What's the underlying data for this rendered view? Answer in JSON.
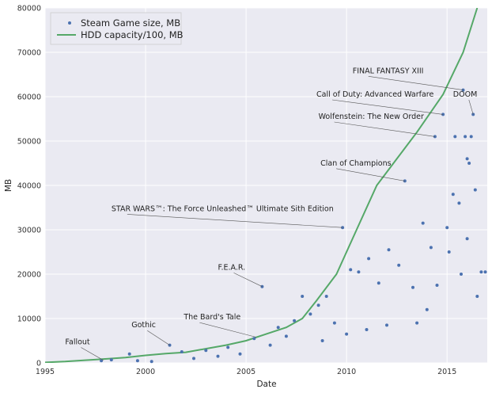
{
  "chart_data": {
    "type": "scatter",
    "xlabel": "Date",
    "ylabel": "MB",
    "xlim": [
      1995,
      2017
    ],
    "ylim": [
      0,
      80000
    ],
    "x_ticks": [
      1995,
      2000,
      2005,
      2010,
      2015
    ],
    "y_ticks": [
      0,
      10000,
      20000,
      30000,
      40000,
      50000,
      60000,
      70000,
      80000
    ],
    "grid": true,
    "legend_position": "top-left",
    "colors": {
      "background": "#eaeaf2",
      "grid": "#ffffff",
      "scatter": "#4c72b0",
      "line": "#55a868"
    },
    "legend": [
      "Steam Game size, MB",
      "HDD capacity/100, MB"
    ],
    "series": [
      {
        "name": "Steam Game size, MB",
        "kind": "scatter",
        "points": [
          [
            1997.8,
            500
          ],
          [
            1998.3,
            700
          ],
          [
            1999.2,
            2000
          ],
          [
            1999.6,
            500
          ],
          [
            2000.3,
            300
          ],
          [
            2001.2,
            4000
          ],
          [
            2001.8,
            2500
          ],
          [
            2002.4,
            1000
          ],
          [
            2003.0,
            2800
          ],
          [
            2003.6,
            1500
          ],
          [
            2004.1,
            3500
          ],
          [
            2004.7,
            2000
          ],
          [
            2005.4,
            5500
          ],
          [
            2005.8,
            17200
          ],
          [
            2006.2,
            4000
          ],
          [
            2006.6,
            8000
          ],
          [
            2007.0,
            6000
          ],
          [
            2007.4,
            9500
          ],
          [
            2007.8,
            15000
          ],
          [
            2008.2,
            11000
          ],
          [
            2008.6,
            13000
          ],
          [
            2009.0,
            15000
          ],
          [
            2009.4,
            9000
          ],
          [
            2009.8,
            30500
          ],
          [
            2010.2,
            21000
          ],
          [
            2010.6,
            20500
          ],
          [
            2011.1,
            23500
          ],
          [
            2011.6,
            18000
          ],
          [
            2012.1,
            25500
          ],
          [
            2012.6,
            22000
          ],
          [
            2012.9,
            41000
          ],
          [
            2013.3,
            17000
          ],
          [
            2013.8,
            31500
          ],
          [
            2014.2,
            26000
          ],
          [
            2014.4,
            51000
          ],
          [
            2014.8,
            56000
          ],
          [
            2015.0,
            30500
          ],
          [
            2015.3,
            38000
          ],
          [
            2015.4,
            51000
          ],
          [
            2015.6,
            36000
          ],
          [
            2015.8,
            61500
          ],
          [
            2015.9,
            51000
          ],
          [
            2016.0,
            46000
          ],
          [
            2016.1,
            45000
          ],
          [
            2016.2,
            51000
          ],
          [
            2016.3,
            56000
          ],
          [
            2016.4,
            39000
          ],
          [
            2016.7,
            20500
          ],
          [
            2016.9,
            20500
          ],
          [
            2014.0,
            12000
          ],
          [
            2014.5,
            17500
          ],
          [
            2015.1,
            25000
          ],
          [
            2016.0,
            28000
          ],
          [
            2013.5,
            9000
          ],
          [
            2011.0,
            7500
          ],
          [
            2012.0,
            8500
          ],
          [
            2010.0,
            6500
          ],
          [
            2008.8,
            5000
          ],
          [
            2016.5,
            15000
          ],
          [
            2015.7,
            20000
          ]
        ]
      },
      {
        "name": "HDD capacity/100, MB",
        "kind": "line",
        "points": [
          [
            1995.0,
            100
          ],
          [
            1996.0,
            300
          ],
          [
            1997.0,
            600
          ],
          [
            1998.0,
            900
          ],
          [
            1999.0,
            1200
          ],
          [
            2000.0,
            1700
          ],
          [
            2001.0,
            2100
          ],
          [
            2002.0,
            2400
          ],
          [
            2003.0,
            3200
          ],
          [
            2004.0,
            4000
          ],
          [
            2005.0,
            5000
          ],
          [
            2006.0,
            6500
          ],
          [
            2007.0,
            8000
          ],
          [
            2007.8,
            10000
          ],
          [
            2008.5,
            14000
          ],
          [
            2009.5,
            20000
          ],
          [
            2010.5,
            30000
          ],
          [
            2011.5,
            40000
          ],
          [
            2012.5,
            46000
          ],
          [
            2013.5,
            52000
          ],
          [
            2014.8,
            60500
          ],
          [
            2015.8,
            70000
          ],
          [
            2016.5,
            80000
          ]
        ]
      }
    ],
    "annotations": [
      {
        "text": "Fallout",
        "text_x": 1996.0,
        "text_y": 4200,
        "point_x": 1997.9,
        "point_y": 600
      },
      {
        "text": "Gothic",
        "text_x": 1999.3,
        "text_y": 8000,
        "point_x": 2001.2,
        "point_y": 4000
      },
      {
        "text": "The Bard's Tale",
        "text_x": 2001.9,
        "text_y": 9800,
        "point_x": 2005.5,
        "point_y": 5800
      },
      {
        "text": "F.E.A.R.",
        "text_x": 2003.6,
        "text_y": 21000,
        "point_x": 2005.8,
        "point_y": 17200
      },
      {
        "text": "STAR WARS™: The Force Unleashed™ Ultimate Sith Edition",
        "text_x": 1998.3,
        "text_y": 34200,
        "point_x": 2009.8,
        "point_y": 30500
      },
      {
        "text": "Clan of Champions",
        "text_x": 2008.7,
        "text_y": 44500,
        "point_x": 2012.9,
        "point_y": 41000
      },
      {
        "text": "Wolfenstein: The New Order",
        "text_x": 2008.6,
        "text_y": 55000,
        "point_x": 2014.4,
        "point_y": 51000
      },
      {
        "text": "Call of Duty: Advanced Warfare",
        "text_x": 2008.5,
        "text_y": 60000,
        "point_x": 2014.8,
        "point_y": 56000
      },
      {
        "text": "DOOM",
        "text_x": 2015.3,
        "text_y": 60000,
        "point_x": 2016.3,
        "point_y": 56000
      },
      {
        "text": "FINAL FANTASY XIII",
        "text_x": 2010.3,
        "text_y": 65300,
        "point_x": 2015.8,
        "point_y": 61500
      }
    ]
  }
}
